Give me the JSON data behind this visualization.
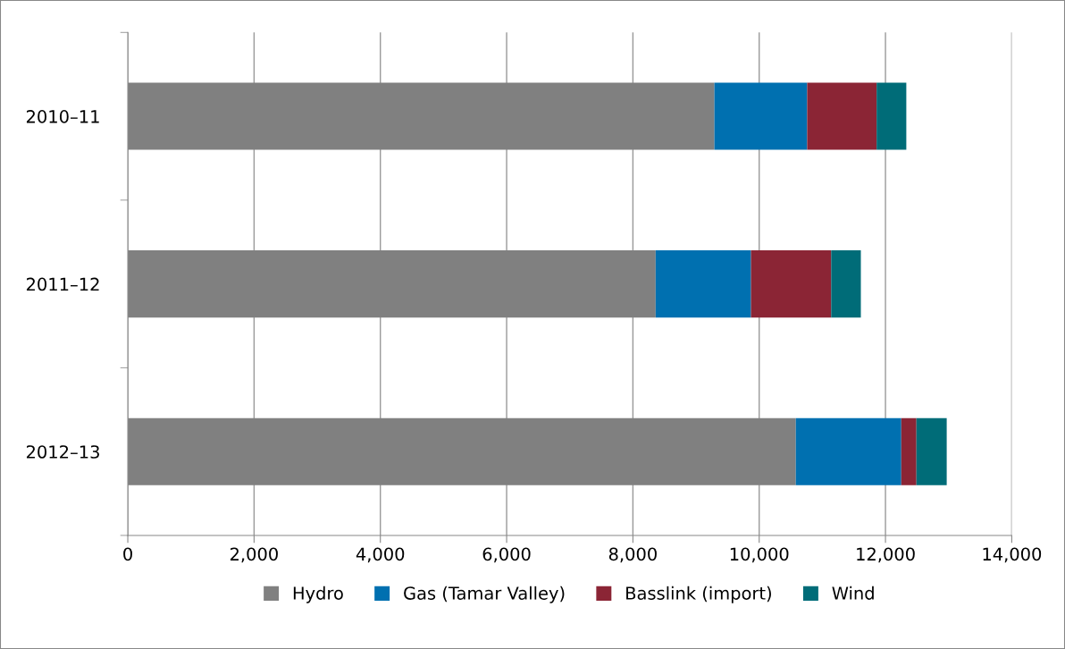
{
  "chart_data": {
    "type": "bar",
    "orientation": "horizontal",
    "stacked": true,
    "categories": [
      "2010–11",
      "2011–12",
      "2012–13"
    ],
    "series": [
      {
        "name": "Hydro",
        "color": "#808080",
        "values": [
          9290,
          8360,
          10580
        ]
      },
      {
        "name": "Gas (Tamar Valley)",
        "color": "#0070b0",
        "values": [
          1470,
          1510,
          1670
        ]
      },
      {
        "name": "Basslink (import)",
        "color": "#8b2535",
        "values": [
          1100,
          1270,
          240
        ]
      },
      {
        "name": "Wind",
        "color": "#006c78",
        "values": [
          470,
          470,
          480
        ]
      }
    ],
    "xlim": [
      0,
      14000
    ],
    "xticks": [
      {
        "value": 0,
        "label": "0"
      },
      {
        "value": 2000,
        "label": "2,000"
      },
      {
        "value": 4000,
        "label": "4,000"
      },
      {
        "value": 6000,
        "label": "6,000"
      },
      {
        "value": 8000,
        "label": "8,000"
      },
      {
        "value": 10000,
        "label": "10,000"
      },
      {
        "value": 12000,
        "label": "12,000"
      },
      {
        "value": 14000,
        "label": "14,000"
      }
    ],
    "grid": "x",
    "legend": "bottom"
  }
}
